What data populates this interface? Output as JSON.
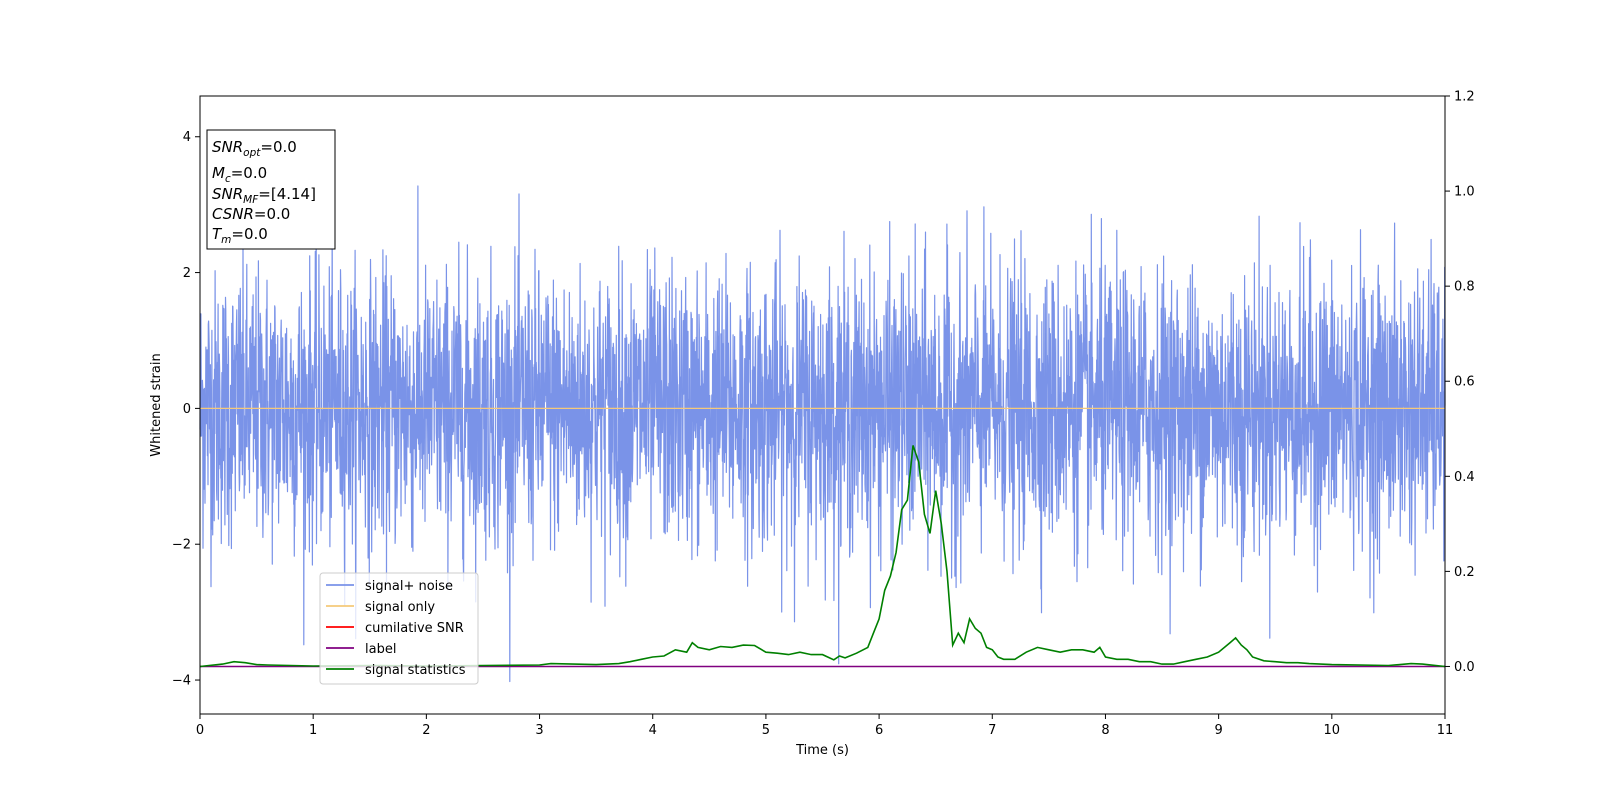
{
  "chart_data": {
    "type": "line",
    "xlabel": "Time (s)",
    "ylabel": "Whitened strain",
    "xlim": [
      0,
      11
    ],
    "ylim": [
      -4.5,
      4.6
    ],
    "y2lim": [
      -0.1,
      1.2
    ],
    "x_ticks": [
      "0",
      "1",
      "2",
      "3",
      "4",
      "5",
      "6",
      "7",
      "8",
      "9",
      "10",
      "11"
    ],
    "y_ticks": [
      "4",
      "2",
      "0",
      "−2",
      "−4"
    ],
    "y2_ticks": [
      "1.2",
      "1.0",
      "0.8",
      "0.6",
      "0.4",
      "0.2",
      "0.0"
    ],
    "grid": false,
    "legend_position": "lower-left",
    "info_box": {
      "lines": [
        {
          "var": "SNR",
          "sub": "opt",
          "value": "=0.0"
        },
        {
          "var": "M",
          "sub": "c",
          "value": "=0.0"
        },
        {
          "var": "SNR",
          "sub": "MF",
          "value": "=[4.14]"
        },
        {
          "var": "CSNR",
          "sub": "",
          "value": "=0.0"
        },
        {
          "var": "T",
          "sub": "m",
          "value": "=0.0"
        }
      ]
    },
    "series": [
      {
        "name": "signal+ noise",
        "color": "#7a93e8",
        "axis": "left",
        "kind": "noise",
        "x_range": [
          0,
          11
        ],
        "std": 1.0,
        "y_min_observed": -4.05,
        "y_max_observed": 4.18
      },
      {
        "name": "signal only",
        "color": "#f5c97a",
        "axis": "left",
        "x": [
          0,
          11
        ],
        "y": [
          0,
          0
        ]
      },
      {
        "name": "cumilative SNR",
        "color": "#ff0000",
        "axis": "left",
        "x": [],
        "y": []
      },
      {
        "name": "label",
        "color": "#800080",
        "axis": "right",
        "x": [
          0,
          11
        ],
        "y": [
          0,
          0
        ]
      },
      {
        "name": "signal statistics",
        "color": "#008000",
        "axis": "right",
        "x": [
          0,
          0.2,
          0.3,
          0.4,
          0.5,
          0.6,
          0.8,
          1.0,
          1.5,
          2.0,
          2.5,
          3.0,
          3.1,
          3.3,
          3.5,
          3.7,
          3.8,
          3.9,
          4.0,
          4.1,
          4.2,
          4.3,
          4.35,
          4.4,
          4.5,
          4.6,
          4.7,
          4.8,
          4.9,
          5.0,
          5.1,
          5.2,
          5.3,
          5.4,
          5.5,
          5.6,
          5.65,
          5.7,
          5.8,
          5.9,
          5.95,
          6.0,
          6.05,
          6.1,
          6.15,
          6.2,
          6.25,
          6.3,
          6.35,
          6.4,
          6.45,
          6.5,
          6.55,
          6.6,
          6.65,
          6.7,
          6.75,
          6.8,
          6.85,
          6.9,
          6.95,
          7.0,
          7.05,
          7.1,
          7.2,
          7.3,
          7.4,
          7.5,
          7.6,
          7.7,
          7.8,
          7.9,
          7.95,
          8.0,
          8.1,
          8.2,
          8.3,
          8.4,
          8.5,
          8.6,
          8.7,
          8.8,
          8.9,
          9.0,
          9.1,
          9.15,
          9.2,
          9.25,
          9.3,
          9.4,
          9.5,
          9.6,
          9.7,
          9.8,
          10.0,
          10.5,
          10.7,
          10.8,
          11.0
        ],
        "y": [
          0.0,
          0.005,
          0.01,
          0.008,
          0.004,
          0.003,
          0.002,
          0.001,
          0.002,
          0.001,
          0.002,
          0.003,
          0.006,
          0.005,
          0.004,
          0.006,
          0.01,
          0.015,
          0.02,
          0.022,
          0.035,
          0.03,
          0.05,
          0.04,
          0.035,
          0.042,
          0.04,
          0.045,
          0.044,
          0.03,
          0.028,
          0.025,
          0.03,
          0.025,
          0.025,
          0.014,
          0.022,
          0.018,
          0.028,
          0.04,
          0.07,
          0.1,
          0.16,
          0.19,
          0.24,
          0.33,
          0.35,
          0.465,
          0.43,
          0.32,
          0.28,
          0.37,
          0.3,
          0.2,
          0.045,
          0.07,
          0.05,
          0.1,
          0.08,
          0.07,
          0.04,
          0.035,
          0.02,
          0.015,
          0.015,
          0.03,
          0.04,
          0.035,
          0.03,
          0.035,
          0.035,
          0.03,
          0.04,
          0.02,
          0.015,
          0.015,
          0.01,
          0.01,
          0.005,
          0.005,
          0.01,
          0.015,
          0.02,
          0.03,
          0.05,
          0.06,
          0.045,
          0.035,
          0.02,
          0.012,
          0.01,
          0.008,
          0.008,
          0.006,
          0.004,
          0.002,
          0.006,
          0.005,
          0.0
        ]
      }
    ]
  }
}
